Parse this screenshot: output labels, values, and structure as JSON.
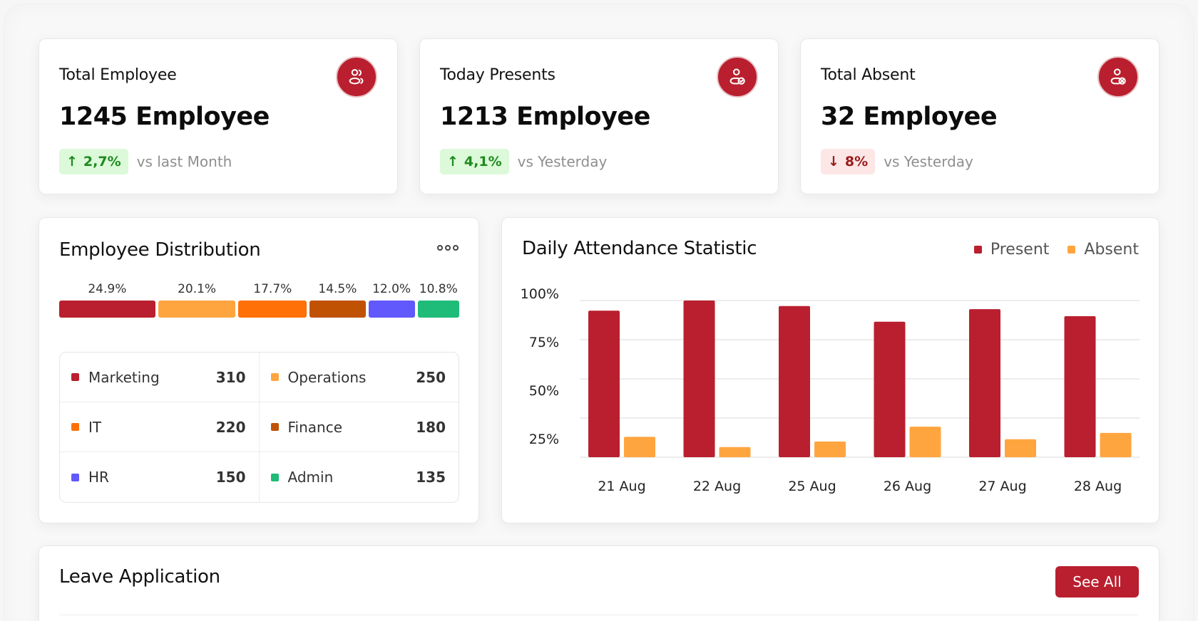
{
  "stats": [
    {
      "label": "Total Employee",
      "value": "1245 Employee",
      "change": "2,7%",
      "direction": "up",
      "compare": "vs last Month",
      "icon": "users-icon"
    },
    {
      "label": "Today Presents",
      "value": "1213 Employee",
      "change": "4,1%",
      "direction": "up",
      "compare": "vs Yesterday",
      "icon": "user-check-icon"
    },
    {
      "label": "Total Absent",
      "value": "32 Employee",
      "change": "8%",
      "direction": "down",
      "compare": "vs Yesterday",
      "icon": "user-x-icon"
    }
  ],
  "arrows": {
    "up": "↑",
    "down": "↓"
  },
  "distribution": {
    "title": "Employee Distribution",
    "more_icon": "more-options-icon",
    "departments": [
      {
        "name": "Marketing",
        "count": "310",
        "percent": "24.9%",
        "share": 24.9,
        "color": "#b91f2e"
      },
      {
        "name": "Operations",
        "count": "250",
        "percent": "20.1%",
        "share": 20.1,
        "color": "#ffa53f"
      },
      {
        "name": "IT",
        "count": "220",
        "percent": "17.7%",
        "share": 17.7,
        "color": "#ff7006"
      },
      {
        "name": "Finance",
        "count": "180",
        "percent": "14.5%",
        "share": 14.5,
        "color": "#c05303"
      },
      {
        "name": "HR",
        "count": "150",
        "percent": "12.0%",
        "share": 12.0,
        "color": "#6159fb"
      },
      {
        "name": "Admin",
        "count": "135",
        "percent": "10.8%",
        "share": 10.8,
        "color": "#1fbb78"
      }
    ]
  },
  "attendance": {
    "title": "Daily Attendance Statistic",
    "legend": [
      {
        "name": "Present",
        "color": "#b91f2e"
      },
      {
        "name": "Absent",
        "color": "#ffa53f"
      }
    ]
  },
  "chart_data": {
    "type": "bar",
    "title": "Daily Attendance Statistic",
    "categories": [
      "21 Aug",
      "22 Aug",
      "25 Aug",
      "26 Aug",
      "27 Aug",
      "28 Aug"
    ],
    "series": [
      {
        "name": "Present",
        "color": "#b91f2e",
        "values": [
          93.5,
          100,
          96.5,
          86.5,
          94.5,
          90
        ]
      },
      {
        "name": "Absent",
        "color": "#ffa53f",
        "values": [
          13,
          6.5,
          10,
          19.5,
          11.5,
          15.5
        ]
      }
    ],
    "yticks": [
      "100%",
      "75%",
      "50%",
      "25%"
    ],
    "ylim": [
      0,
      100
    ],
    "grid": true,
    "legend_position": "top-right",
    "xlabel": "",
    "ylabel": ""
  },
  "leave": {
    "title": "Leave Application",
    "see_all_label": "See All"
  }
}
